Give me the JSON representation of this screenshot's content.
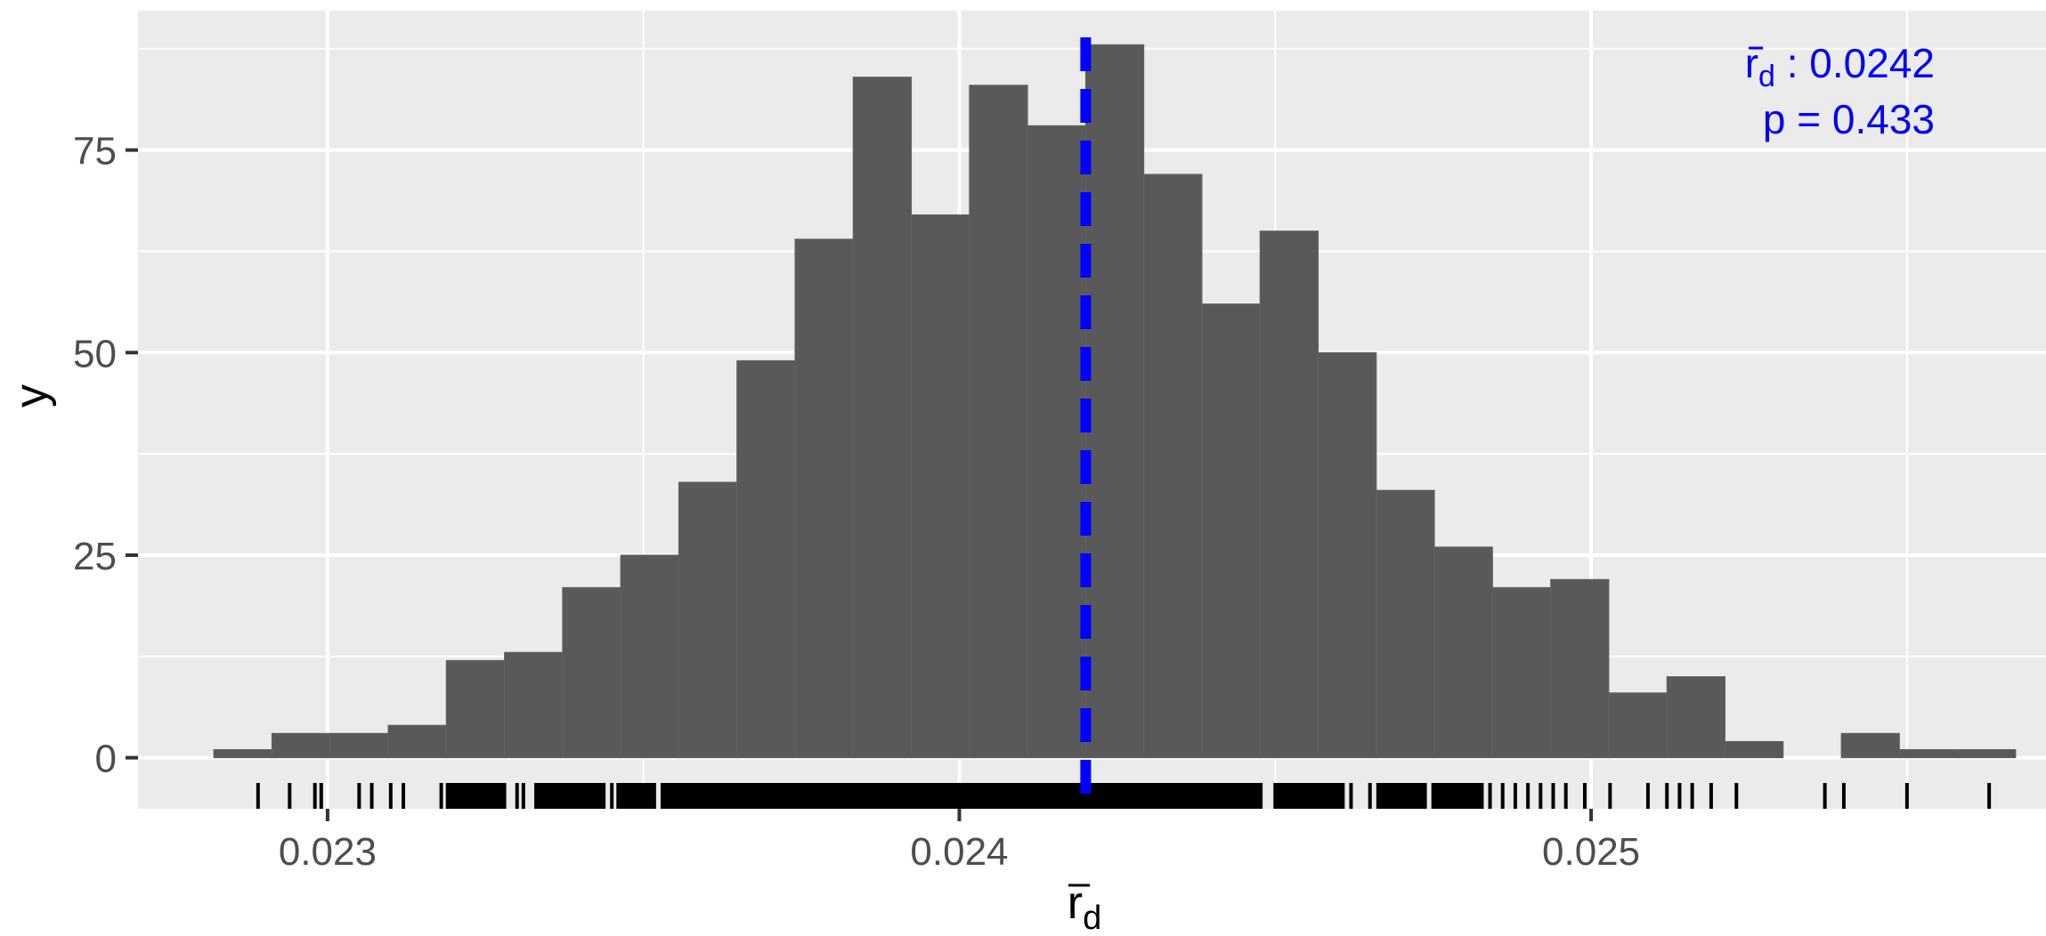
{
  "chart_data": {
    "type": "histogram",
    "x_label_main": "r",
    "x_label_sub": "d",
    "ylabel": "y",
    "xlim": [
      0.0227,
      0.02572
    ],
    "ylim": [
      -6.3,
      92.2
    ],
    "x_ticks": [
      0.023,
      0.024,
      0.025
    ],
    "x_tick_labels": [
      "0.023",
      "0.024",
      "0.025"
    ],
    "y_ticks": [
      0,
      25,
      50,
      75
    ],
    "y_tick_labels": [
      "0",
      "25",
      "50",
      "75"
    ],
    "minor_x_gridlines": [
      0.0235,
      0.0245,
      0.0255
    ],
    "minor_y_gridlines": [
      12.5,
      37.5,
      62.5,
      87.5
    ],
    "grid": true,
    "bin_width": 9.21e-05,
    "bins": [
      {
        "x0": 0.02282,
        "x1": 0.022912,
        "count": 1
      },
      {
        "x0": 0.022912,
        "x1": 0.023004,
        "count": 3
      },
      {
        "x0": 0.023004,
        "x1": 0.023096,
        "count": 3
      },
      {
        "x0": 0.023096,
        "x1": 0.023188,
        "count": 4
      },
      {
        "x0": 0.023188,
        "x1": 0.02328,
        "count": 12
      },
      {
        "x0": 0.02328,
        "x1": 0.023372,
        "count": 13
      },
      {
        "x0": 0.023372,
        "x1": 0.023464,
        "count": 21
      },
      {
        "x0": 0.023464,
        "x1": 0.023556,
        "count": 25
      },
      {
        "x0": 0.023556,
        "x1": 0.023648,
        "count": 34
      },
      {
        "x0": 0.023648,
        "x1": 0.02374,
        "count": 49
      },
      {
        "x0": 0.02374,
        "x1": 0.023832,
        "count": 64
      },
      {
        "x0": 0.023832,
        "x1": 0.023924,
        "count": 84
      },
      {
        "x0": 0.023924,
        "x1": 0.024016,
        "count": 67
      },
      {
        "x0": 0.024016,
        "x1": 0.024108,
        "count": 83
      },
      {
        "x0": 0.024108,
        "x1": 0.0242,
        "count": 78
      },
      {
        "x0": 0.0242,
        "x1": 0.024292,
        "count": 88
      },
      {
        "x0": 0.024292,
        "x1": 0.024384,
        "count": 72
      },
      {
        "x0": 0.024384,
        "x1": 0.024476,
        "count": 56
      },
      {
        "x0": 0.024476,
        "x1": 0.024568,
        "count": 65
      },
      {
        "x0": 0.024568,
        "x1": 0.02466,
        "count": 50
      },
      {
        "x0": 0.02466,
        "x1": 0.024752,
        "count": 33
      },
      {
        "x0": 0.024752,
        "x1": 0.024844,
        "count": 26
      },
      {
        "x0": 0.024844,
        "x1": 0.024936,
        "count": 21
      },
      {
        "x0": 0.024936,
        "x1": 0.025028,
        "count": 22
      },
      {
        "x0": 0.025028,
        "x1": 0.02512,
        "count": 8
      },
      {
        "x0": 0.02512,
        "x1": 0.025212,
        "count": 10
      },
      {
        "x0": 0.025212,
        "x1": 0.025304,
        "count": 2
      },
      {
        "x0": 0.025304,
        "x1": 0.025396,
        "count": 0
      },
      {
        "x0": 0.025396,
        "x1": 0.025488,
        "count": 3
      },
      {
        "x0": 0.025488,
        "x1": 0.02558,
        "count": 1
      },
      {
        "x0": 0.02558,
        "x1": 0.025672,
        "count": 1
      }
    ],
    "rug_isolated": [
      0.02289,
      0.02294,
      0.02298,
      0.02299,
      0.02305,
      0.02307,
      0.0231,
      0.02312,
      0.02318,
      0.02319,
      0.0232,
      0.02322,
      0.02324,
      0.02326,
      0.02328,
      0.0233,
      0.02331,
      0.02333,
      0.02336,
      0.02338,
      0.02339,
      0.02342,
      0.02345,
      0.02346,
      0.02348,
      0.0235,
      0.02353,
      0.02354,
      0.02357,
      0.02361,
      0.02363,
      0.02366,
      0.02369,
      0.02372,
      0.02375,
      0.02378,
      0.02381,
      0.02384,
      0.02387,
      0.0239,
      0.02393,
      0.02396,
      0.02399,
      0.02402,
      0.02405,
      0.02408,
      0.02411,
      0.02414,
      0.02417,
      0.0242,
      0.02423,
      0.02426,
      0.02429,
      0.02432,
      0.02435,
      0.02438,
      0.02441,
      0.02444,
      0.02447,
      0.0245,
      0.02453,
      0.02456,
      0.02459,
      0.02462,
      0.02465,
      0.02467,
      0.0247,
      0.02472,
      0.02475,
      0.02477,
      0.0248,
      0.02482,
      0.02484,
      0.02486,
      0.02488,
      0.0249,
      0.02492,
      0.02494,
      0.02496,
      0.02499,
      0.02503,
      0.02509,
      0.02512,
      0.02514,
      0.02516,
      0.02519,
      0.02523,
      0.02537,
      0.0254,
      0.0255,
      0.02563
    ],
    "rug_dense_ranges": [
      [
        0.02319,
        0.02328
      ],
      [
        0.02333,
        0.02344
      ],
      [
        0.02346,
        0.02352
      ],
      [
        0.02353,
        0.02448
      ],
      [
        0.0245,
        0.02461
      ],
      [
        0.02466,
        0.02474
      ],
      [
        0.02475,
        0.02483
      ]
    ],
    "mean_value": 0.0242,
    "mean_line_color": "#0000ff",
    "annotation_lines": [
      {
        "prefix": "r",
        "sub": "d",
        "text": " : 0.0242"
      },
      {
        "prefix": "",
        "sub": "",
        "text": "p = 0.433"
      }
    ],
    "annotation_color": "#0000ff",
    "bar_color": "#595959",
    "panel_color": "#ebebeb"
  }
}
